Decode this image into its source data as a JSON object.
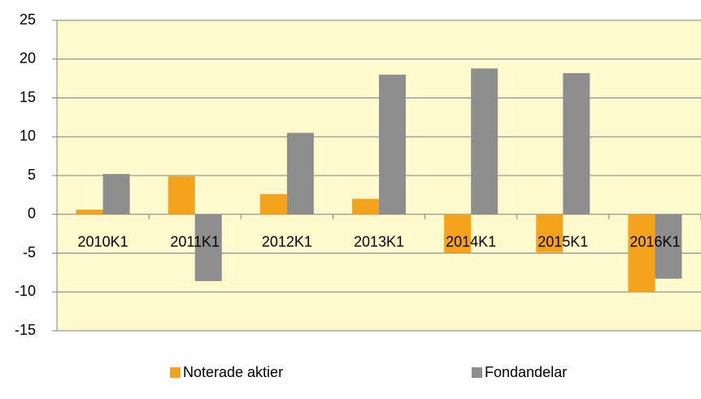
{
  "chart_data": {
    "type": "bar",
    "categories": [
      "2010K1",
      "2011K1",
      "2012K1",
      "2013K1",
      "2014K1",
      "2015K1",
      "2016K1"
    ],
    "series": [
      {
        "name": "Noterade aktier",
        "color": "#f5a31a",
        "values": [
          0.6,
          4.9,
          2.6,
          2.0,
          -5.0,
          -4.9,
          -10.0
        ]
      },
      {
        "name": "Fondandelar",
        "color": "#8e8e8e",
        "values": [
          5.2,
          -8.6,
          10.5,
          18.0,
          18.8,
          18.2,
          -8.3
        ]
      }
    ],
    "ylim": [
      -15,
      25
    ],
    "yticks": [
      -15,
      -10,
      -5,
      0,
      5,
      10,
      15,
      20,
      25
    ],
    "grid": true,
    "background": "#fffacd"
  }
}
